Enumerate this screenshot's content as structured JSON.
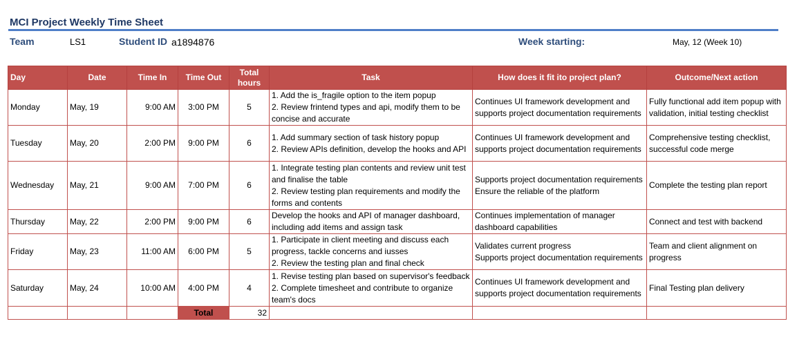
{
  "sheet": {
    "title": "MCI Project Weekly Time Sheet",
    "team_label": "Team",
    "team_value": "LS1",
    "student_id_label": "Student ID",
    "student_id_value": "a1894876",
    "week_label": "Week starting:",
    "week_value": "May, 12 (Week 10)"
  },
  "table": {
    "headers": {
      "day": "Day",
      "date": "Date",
      "time_in": "Time In",
      "time_out": "Time Out",
      "total_hours_1": "Total",
      "total_hours_2": "hours",
      "task": "Task",
      "fit": "How does it fit ito project plan?",
      "outcome": "Outcome/Next action"
    },
    "rows": [
      {
        "day": "Monday",
        "date": "May, 19",
        "time_in": "9:00 AM",
        "time_out": "3:00 PM",
        "hours": "5",
        "task": [
          "1. Add the is_fragile option to the item popup",
          "2. Review frintend types and api, modify them to be concise and accurate"
        ],
        "fit": [
          "Continues UI framework development and supports project documentation requirements"
        ],
        "outcome": [
          "Fully functional add item popup with validation, initial testing checklist"
        ]
      },
      {
        "day": "Tuesday",
        "date": "May, 20",
        "time_in": "2:00 PM",
        "time_out": "9:00 PM",
        "hours": "6",
        "task": [
          "1. Add summary section of task history popup",
          "2. Review APIs definition, develop the hooks and API"
        ],
        "fit": [
          "Continues UI framework development and supports project documentation requirements"
        ],
        "outcome": [
          "Comprehensive testing checklist, successful code merge"
        ]
      },
      {
        "day": "Wednesday",
        "date": "May, 21",
        "time_in": "9:00 AM",
        "time_out": "7:00 PM",
        "hours": "6",
        "task": [
          "1. Integrate testing plan contents and review unit test and finalise the table",
          "2. Review testing plan requirements and modify the forms and contents"
        ],
        "fit": [
          "Supports project documentation requirements",
          "Ensure the reliable of the platform"
        ],
        "outcome": [
          "Complete the testing plan report"
        ]
      },
      {
        "day": "Thursday",
        "date": "May, 22",
        "time_in": "2:00 PM",
        "time_out": "9:00 PM",
        "hours": "6",
        "task": [
          "Develop the hooks and API of manager dashboard, including add items and assign task"
        ],
        "fit": [
          "Continues implementation of manager dashboard capabilities"
        ],
        "outcome": [
          "Connect and test with backend"
        ]
      },
      {
        "day": "Friday",
        "date": "May, 23",
        "time_in": "11:00 AM",
        "time_out": "6:00 PM",
        "hours": "5",
        "task": [
          "1. Participate in client meeting and discuss each progress, tackle concerns and iusses",
          "2.  Review the testing plan and final check"
        ],
        "fit": [
          "Validates current progress",
          "Supports project documentation requirements"
        ],
        "outcome": [
          "Team and client alignment on progress"
        ]
      },
      {
        "day": "Saturday",
        "date": "May, 24",
        "time_in": "10:00 AM",
        "time_out": "4:00 PM",
        "hours": "4",
        "task": [
          "1. Revise testing plan based on supervisor's feedback",
          "2. Complete timesheet and contribute to organize team's docs"
        ],
        "fit": [
          "Continues UI framework development and supports project documentation requirements"
        ],
        "outcome": [
          "Final Testing plan delivery"
        ]
      }
    ],
    "total_label": "Total",
    "total_value": "32"
  }
}
